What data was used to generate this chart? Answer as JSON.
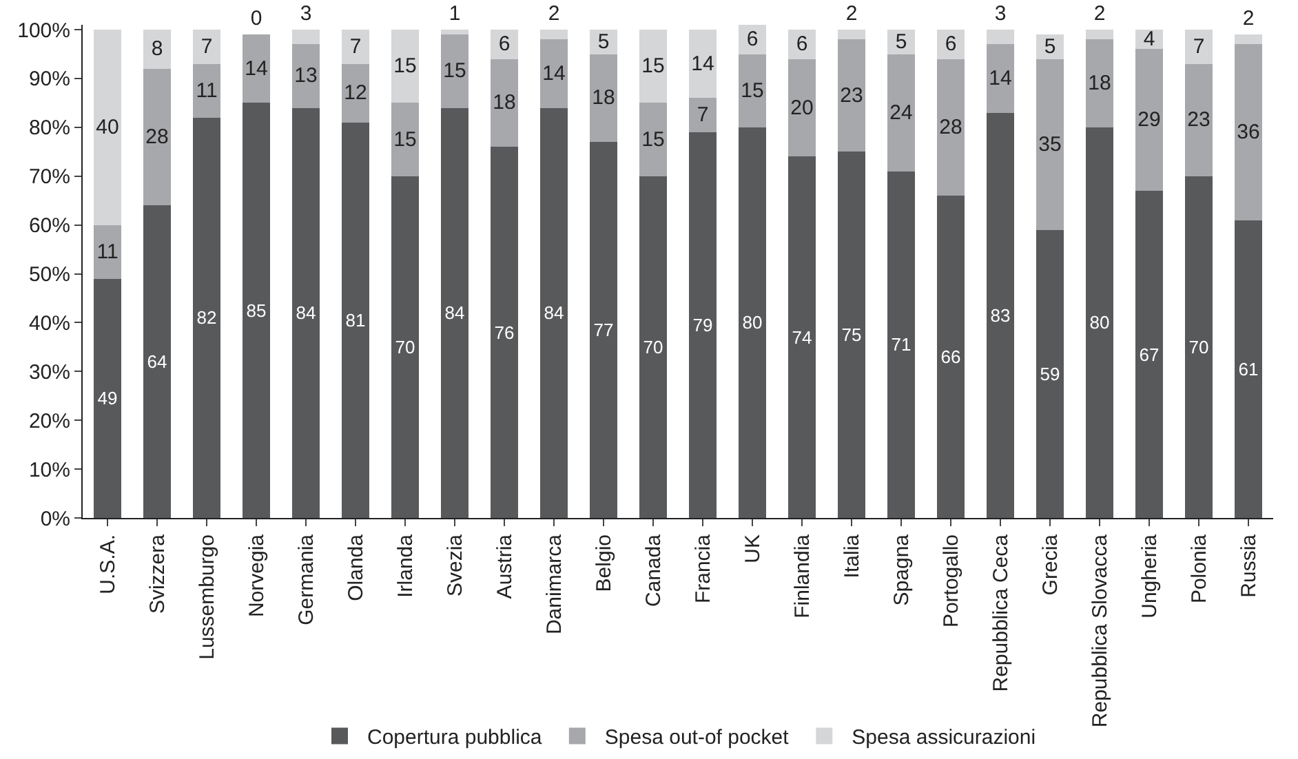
{
  "chart_data": {
    "type": "bar",
    "stacked": true,
    "data_labels": true,
    "legend": "bottom",
    "categories": [
      "U.S.A.",
      "Svizzera",
      "Lussemburgo",
      "Norvegia",
      "Germania",
      "Olanda",
      "Irlanda",
      "Svezia",
      "Austria",
      "Danimarca",
      "Belgio",
      "Canada",
      "Francia",
      "UK",
      "Finlandia",
      "Italia",
      "Spagna",
      "Portogallo",
      "Repubblica Ceca",
      "Grecia",
      "Repubblica Slovacca",
      "Ungheria",
      "Polonia",
      "Russia"
    ],
    "series": [
      {
        "name": "Copertura pubblica",
        "color": "#58595b",
        "values": [
          49,
          64,
          82,
          85,
          84,
          81,
          70,
          84,
          76,
          84,
          77,
          70,
          79,
          80,
          74,
          75,
          71,
          66,
          83,
          59,
          80,
          67,
          70,
          61
        ]
      },
      {
        "name": "Spesa out-of pocket",
        "color": "#a7a8ab",
        "values": [
          11,
          28,
          11,
          14,
          13,
          12,
          15,
          15,
          18,
          14,
          18,
          15,
          7,
          15,
          20,
          23,
          24,
          28,
          14,
          35,
          18,
          29,
          23,
          36
        ]
      },
      {
        "name": "Spesa assicurazioni",
        "color": "#d5d6d8",
        "values": [
          40,
          8,
          7,
          0,
          3,
          7,
          15,
          1,
          6,
          2,
          5,
          15,
          14,
          6,
          6,
          2,
          5,
          6,
          3,
          5,
          2,
          4,
          7,
          2
        ]
      }
    ],
    "ylim": [
      0,
      101
    ],
    "yticks": [
      {
        "value": 0,
        "label": "0%"
      },
      {
        "value": 10,
        "label": "10%"
      },
      {
        "value": 20,
        "label": "20%"
      },
      {
        "value": 30,
        "label": "30%"
      },
      {
        "value": 40,
        "label": "40%"
      },
      {
        "value": 50,
        "label": "50%"
      },
      {
        "value": 60,
        "label": "60%"
      },
      {
        "value": 70,
        "label": "70%"
      },
      {
        "value": 80,
        "label": "80%"
      },
      {
        "value": 90,
        "label": "90%"
      },
      {
        "value": 100,
        "label": "100%"
      }
    ]
  }
}
